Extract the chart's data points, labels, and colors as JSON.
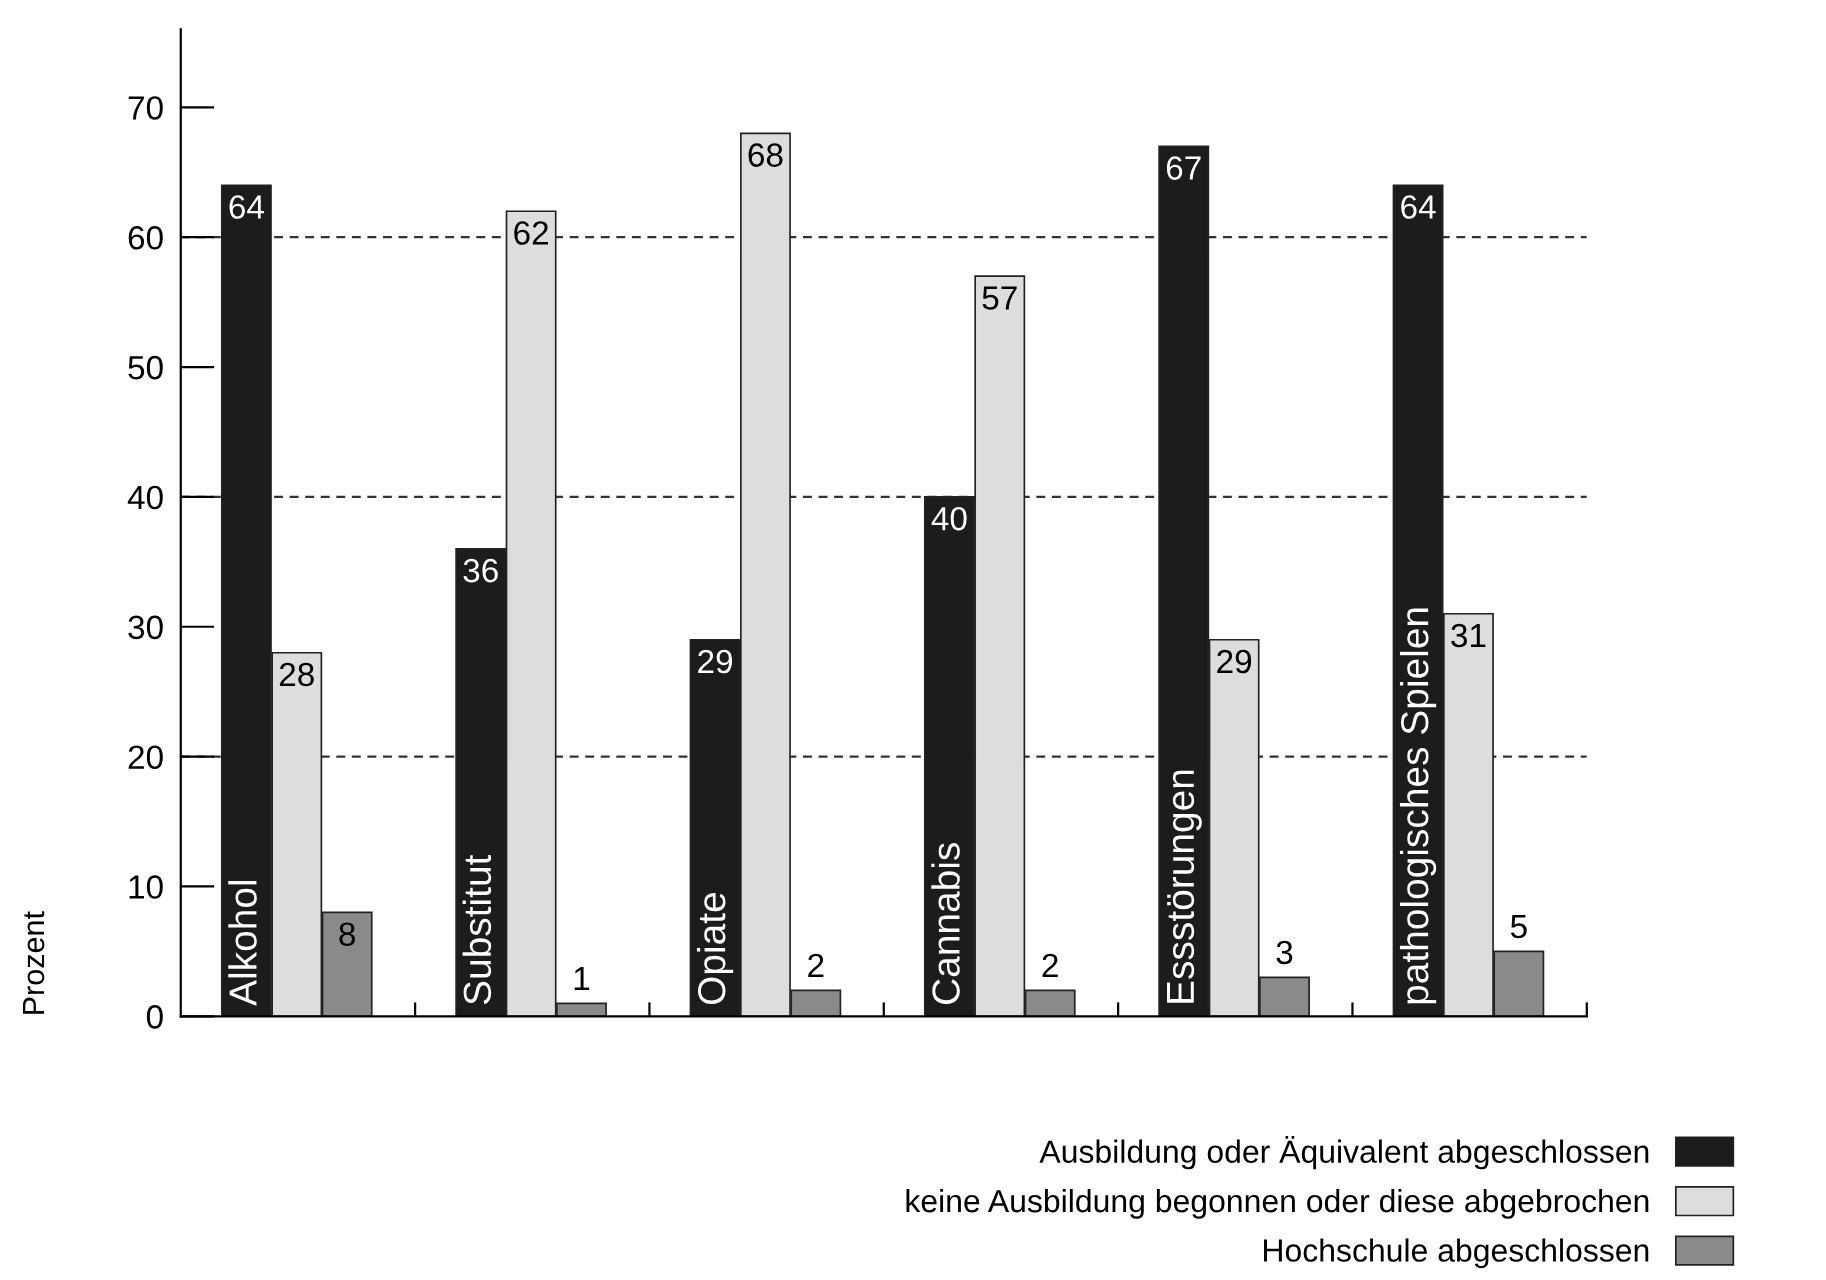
{
  "chart_data": {
    "type": "bar",
    "ylabel": "Prozent",
    "categories": [
      "Alkohol",
      "Substitut",
      "Opiate",
      "Cannabis",
      "Essstörungen",
      "pathologisches Spielen"
    ],
    "series": [
      {
        "name": "Ausbildung oder Äquivalent abgeschlossen",
        "color": "#1c1c1c",
        "values": [
          64,
          36,
          29,
          40,
          67,
          64
        ]
      },
      {
        "name": "keine Ausbildung begonnen oder diese abgebrochen",
        "color": "#dddddd",
        "values": [
          28,
          62,
          68,
          57,
          29,
          31
        ]
      },
      {
        "name": "Hochschule abgeschlossen",
        "color": "#8a8a8a",
        "values": [
          8,
          1,
          2,
          2,
          3,
          5
        ]
      }
    ],
    "ylim": [
      0,
      76
    ],
    "yticks": [
      0,
      10,
      20,
      30,
      40,
      50,
      60,
      70
    ],
    "ref_lines": [
      {
        "axis": "y",
        "value": 20,
        "line_style": "dashed",
        "color": "#333333"
      },
      {
        "axis": "y",
        "value": 40,
        "line_style": "dashed",
        "color": "#333333"
      },
      {
        "axis": "y",
        "value": 60,
        "line_style": "dashed",
        "color": "#333333"
      }
    ],
    "data_labels": true,
    "grid": false,
    "legend": "bottom right",
    "tick_labels": "y"
  }
}
